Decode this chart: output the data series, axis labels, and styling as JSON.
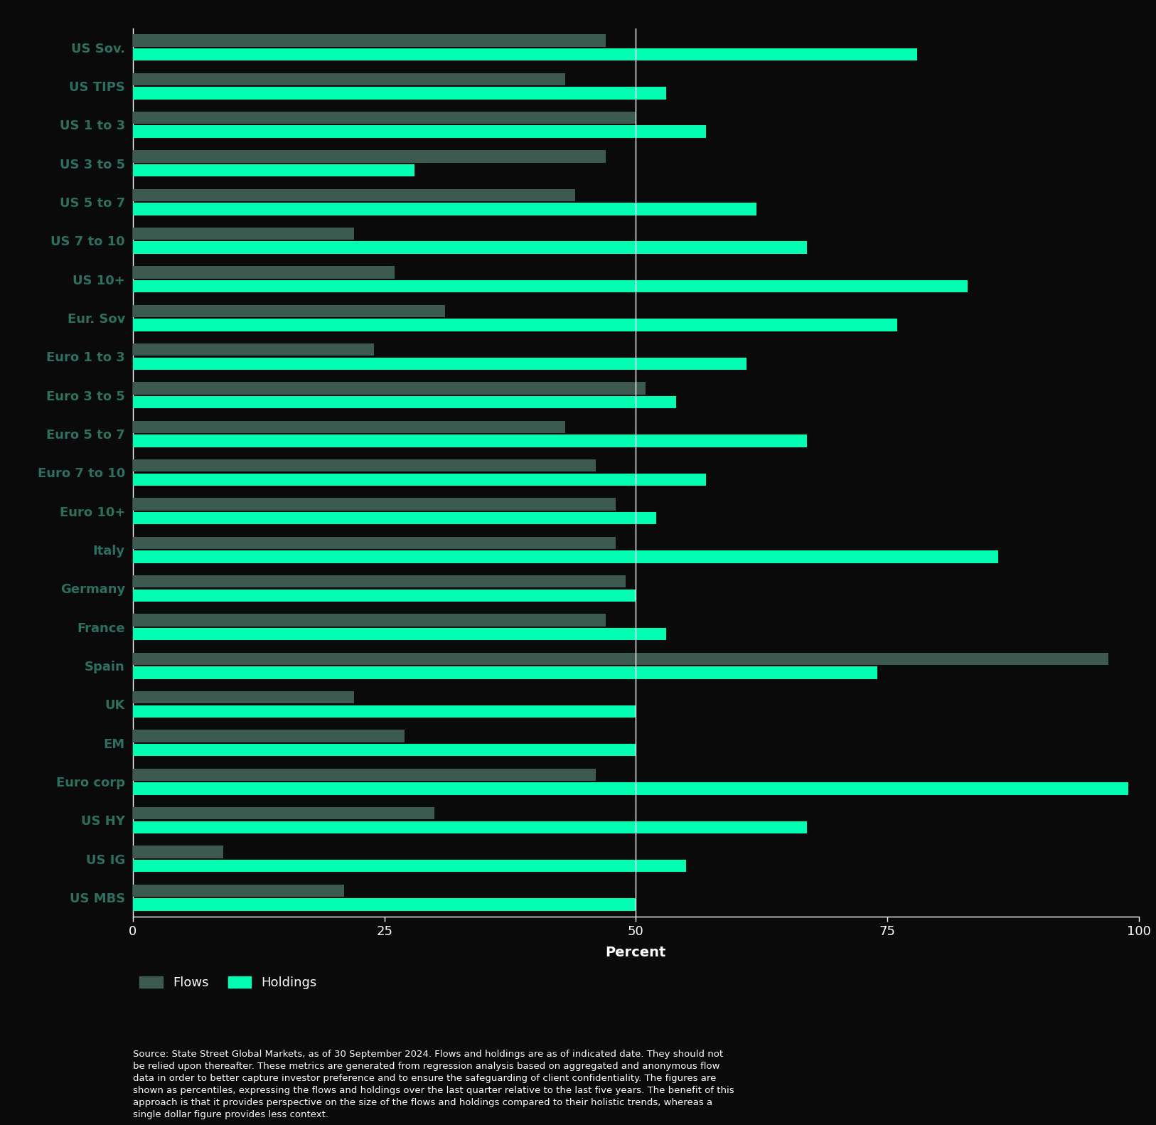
{
  "categories": [
    "US Sov.",
    "US TIPS",
    "US 1 to 3",
    "US 3 to 5",
    "US 5 to 7",
    "US 7 to 10",
    "US 10+",
    "Eur. Sov",
    "Euro 1 to 3",
    "Euro 3 to 5",
    "Euro 5 to 7",
    "Euro 7 to 10",
    "Euro 10+",
    "Italy",
    "Germany",
    "France",
    "Spain",
    "UK",
    "EM",
    "Euro corp",
    "US HY",
    "US IG",
    "US MBS"
  ],
  "flows": [
    47,
    43,
    50,
    47,
    44,
    22,
    26,
    31,
    24,
    51,
    43,
    46,
    48,
    48,
    49,
    47,
    97,
    22,
    27,
    46,
    30,
    9,
    21
  ],
  "holdings": [
    78,
    53,
    57,
    28,
    62,
    67,
    83,
    76,
    61,
    54,
    67,
    57,
    52,
    86,
    50,
    53,
    74,
    50,
    50,
    99,
    67,
    55,
    50
  ],
  "flows_color": "#3d5a50",
  "holdings_color": "#00ffb3",
  "background_color": "#0a0a0a",
  "text_color": "#ffffff",
  "label_color": "#2d6e5e",
  "xtick_color": "#ffffff",
  "xlim": [
    0,
    100
  ],
  "xticks": [
    0,
    25,
    50,
    75,
    100
  ],
  "xlabel": "Percent",
  "source_text": "Source: State Street Global Markets, as of 30 September 2024. Flows and holdings are as of indicated date. They should not\nbe relied upon thereafter. These metrics are generated from regression analysis based on aggregated and anonymous flow\ndata in order to better capture investor preference and to ensure the safeguarding of client confidentiality. The figures are\nshown as percentiles, expressing the flows and holdings over the last quarter relative to the last five years. The benefit of this\napproach is that it provides perspective on the size of the flows and holdings compared to their holistic trends, whereas a\nsingle dollar figure provides less context.",
  "bar_height": 0.32,
  "bar_gap": 0.04,
  "vline_x": 50,
  "legend_flows_label": "Flows",
  "legend_holdings_label": "Holdings"
}
